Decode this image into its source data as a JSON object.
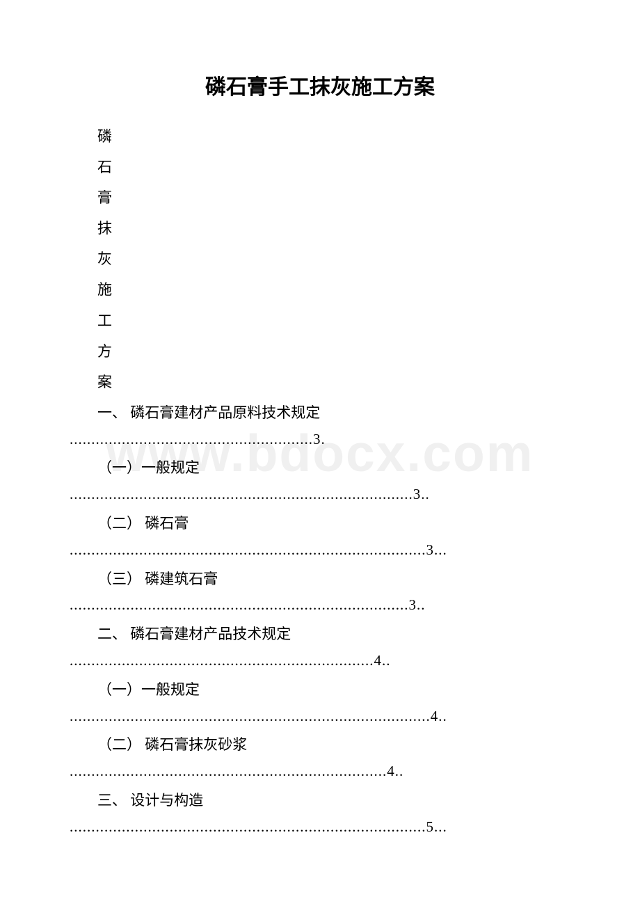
{
  "watermark": "www.bdocx.com",
  "title": "磷石膏手工抹灰施工方案",
  "vertical_title": [
    "磷",
    "石",
    "膏",
    "抹",
    "灰",
    "施",
    "工",
    "方",
    "案"
  ],
  "toc": [
    {
      "label": "一、 磷石膏建材产品原料技术规定",
      "dots": "........................................................",
      "page": "3."
    },
    {
      "label": "（一）一般规定",
      "dots": "...............................................................................",
      "page": "3.."
    },
    {
      "label": "（二） 磷石膏",
      "dots": "..................................................................................",
      "page": "3..."
    },
    {
      "label": "（三） 磷建筑石膏",
      "dots": "..............................................................................",
      "page": "3.."
    },
    {
      "label": "二、 磷石膏建材产品技术规定",
      "dots": "......................................................................",
      "page": "4.."
    },
    {
      "label": "（一）一般规定",
      "dots": "...................................................................................",
      "page": "4.."
    },
    {
      "label": "（二） 磷石膏抹灰砂浆",
      "dots": ".........................................................................",
      "page": "4.."
    },
    {
      "label": "三、 设计与构造",
      "dots": "..................................................................................",
      "page": "5..."
    }
  ],
  "colors": {
    "background": "#ffffff",
    "text": "#000000",
    "watermark": "#f0f0f0"
  }
}
